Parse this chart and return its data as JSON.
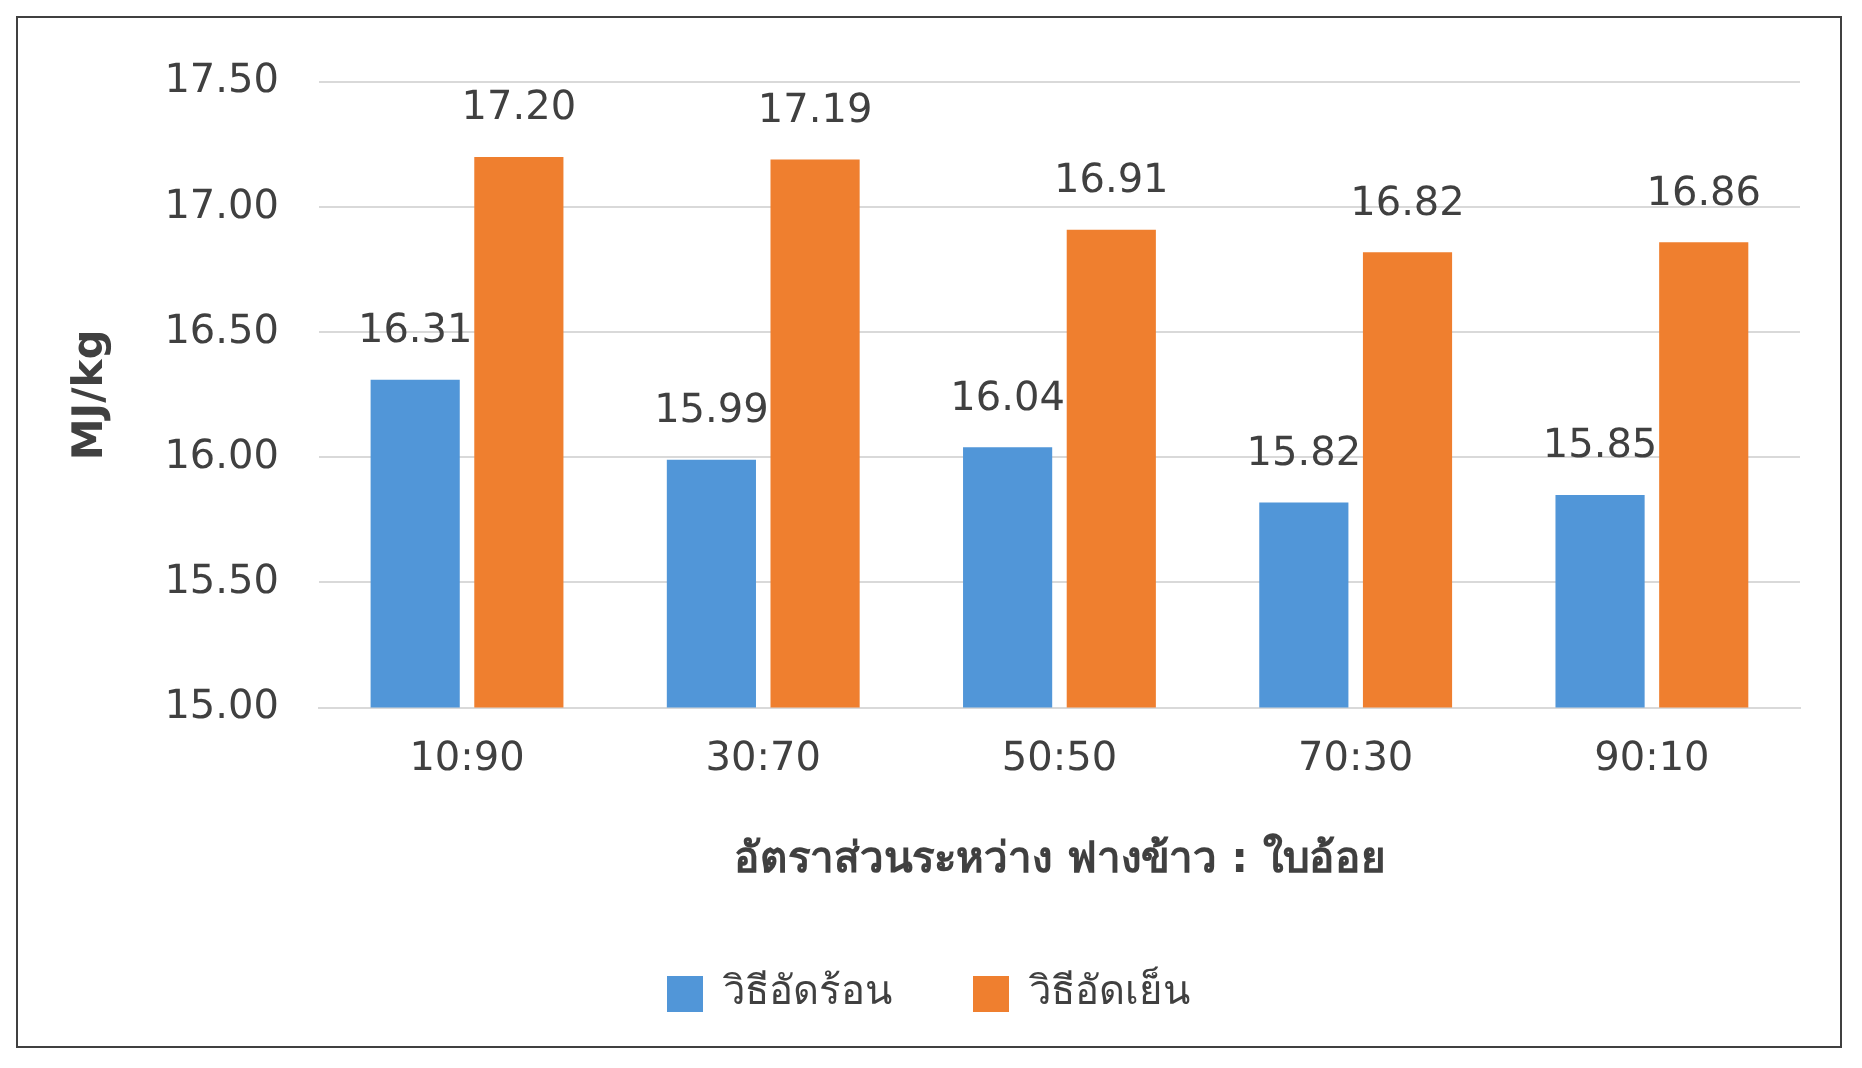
{
  "chart_data": {
    "type": "bar",
    "xlabel": "อัตราส่วนระหว่าง ฟางข้าว : ใบอ้อย",
    "ylabel": "MJ/kg",
    "categories": [
      "10:90",
      "30:70",
      "50:50",
      "70:30",
      "90:10"
    ],
    "series": [
      {
        "name": "วิธีอัดร้อน",
        "color": "#5196d8",
        "values": [
          16.31,
          15.99,
          16.04,
          15.82,
          15.85
        ],
        "value_labels": [
          "16.31",
          "15.99",
          "16.04",
          "15.82",
          "15.85"
        ]
      },
      {
        "name": "วิธีอัดเย็น",
        "color": "#ef7f2f",
        "values": [
          17.2,
          17.19,
          16.91,
          16.82,
          16.86
        ],
        "value_labels": [
          "17.20",
          "17.19",
          "16.91",
          "16.82",
          "16.86"
        ]
      }
    ],
    "ylim": [
      15,
      17.5
    ],
    "yticks": [
      {
        "value": 15,
        "label": "15.00"
      },
      {
        "value": 15.5,
        "label": "15.50"
      },
      {
        "value": 16,
        "label": "16.00"
      },
      {
        "value": 16.5,
        "label": "16.50"
      },
      {
        "value": 17,
        "label": "17.00"
      },
      {
        "value": 17.5,
        "label": "17.50"
      }
    ],
    "grid": "y",
    "legend": "bottom"
  }
}
